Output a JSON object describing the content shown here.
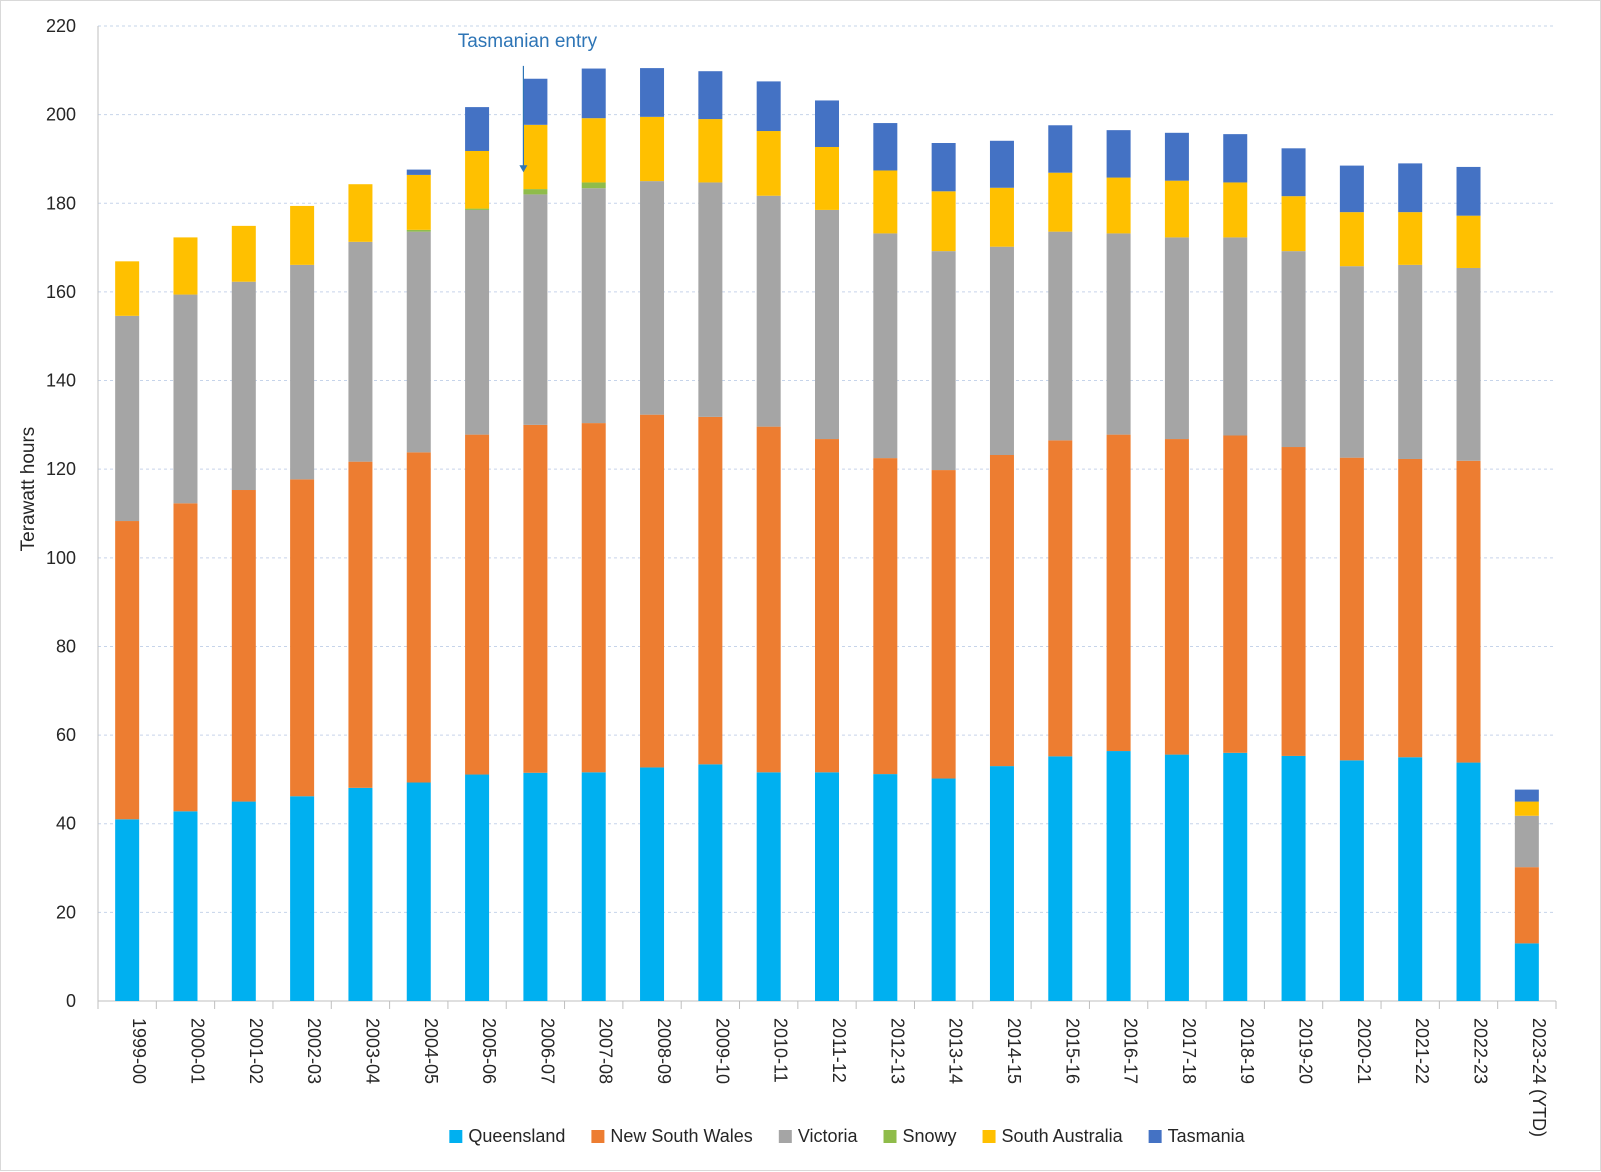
{
  "chart_data": {
    "type": "bar",
    "stacked": true,
    "title": "",
    "xlabel": "",
    "ylabel": "Terawatt hours",
    "ylim": [
      0,
      220
    ],
    "yticks": [
      0,
      20,
      40,
      60,
      80,
      100,
      120,
      140,
      160,
      180,
      200,
      220
    ],
    "grid": "horizontal-dashed",
    "legend_position": "bottom",
    "categories": [
      "1999-00",
      "2000-01",
      "2001-02",
      "2002-03",
      "2003-04",
      "2004-05",
      "2005-06",
      "2006-07",
      "2007-08",
      "2008-09",
      "2009-10",
      "2010-11",
      "2011-12",
      "2012-13",
      "2013-14",
      "2014-15",
      "2015-16",
      "2016-17",
      "2017-18",
      "2018-19",
      "2019-20",
      "2020-21",
      "2021-22",
      "2022-23",
      "2023-24 (YTD)"
    ],
    "series": [
      {
        "name": "Queensland",
        "color": "#00b0f0",
        "values": [
          41.0,
          42.8,
          45.0,
          46.2,
          48.1,
          49.3,
          51.1,
          51.5,
          51.6,
          52.7,
          53.4,
          51.6,
          51.6,
          51.2,
          50.2,
          53.0,
          55.2,
          56.4,
          55.6,
          56.0,
          55.3,
          54.3,
          55.0,
          53.8,
          13.0
        ]
      },
      {
        "name": "New South Wales",
        "color": "#ed7d31",
        "values": [
          67.3,
          69.5,
          70.3,
          71.5,
          73.6,
          74.5,
          76.7,
          78.5,
          78.8,
          79.6,
          78.4,
          78.0,
          75.2,
          71.3,
          69.6,
          70.2,
          71.3,
          71.4,
          71.2,
          71.6,
          69.7,
          68.3,
          67.3,
          68.1,
          17.2
        ]
      },
      {
        "name": "Victoria",
        "color": "#a5a5a5",
        "values": [
          46.3,
          47.1,
          47.0,
          48.4,
          49.6,
          49.8,
          50.7,
          52.0,
          53.0,
          52.7,
          52.9,
          52.1,
          51.7,
          50.7,
          49.4,
          47.0,
          47.1,
          45.4,
          45.5,
          44.7,
          44.2,
          43.2,
          43.8,
          43.5,
          11.6
        ]
      },
      {
        "name": "Snowy",
        "color": "#8fbc4a",
        "values": [
          0,
          0,
          0,
          0,
          0,
          0.4,
          0.3,
          1.2,
          1.3,
          0,
          0,
          0,
          0,
          0,
          0,
          0,
          0,
          0,
          0,
          0,
          0,
          0,
          0,
          0,
          0
        ]
      },
      {
        "name": "South Australia",
        "color": "#ffc000",
        "values": [
          12.3,
          12.9,
          12.6,
          13.3,
          13.0,
          12.4,
          13.0,
          14.5,
          14.5,
          14.5,
          14.3,
          14.6,
          14.2,
          14.2,
          13.5,
          13.3,
          13.3,
          12.6,
          12.8,
          12.4,
          12.4,
          12.2,
          11.9,
          11.8,
          3.2
        ]
      },
      {
        "name": "Tasmania",
        "color": "#4472c4",
        "values": [
          0,
          0,
          0,
          0,
          0,
          1.2,
          9.9,
          10.4,
          11.2,
          11.0,
          10.8,
          11.2,
          10.5,
          10.7,
          10.9,
          10.6,
          10.7,
          10.7,
          10.8,
          10.9,
          10.8,
          10.5,
          11.0,
          11.0,
          2.7
        ]
      }
    ],
    "annotations": [
      {
        "text": "Tasmanian entry",
        "category": "2006-07",
        "value_from": 211,
        "value_to": 187
      }
    ]
  }
}
